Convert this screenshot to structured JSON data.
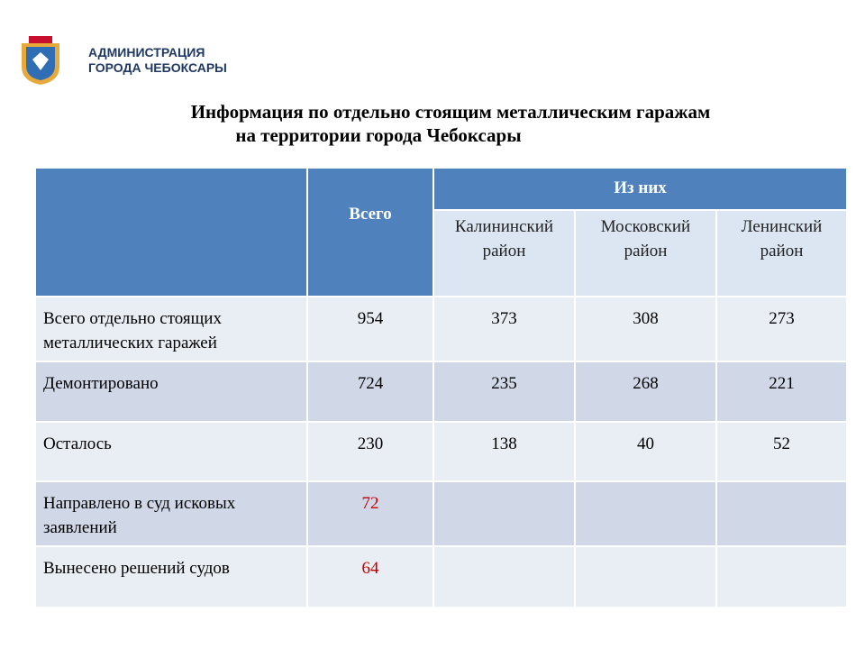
{
  "header": {
    "org_line1": "АДМИНИСТРАЦИЯ",
    "org_line2": "ГОРОДА ЧЕБОКСАРЫ"
  },
  "title": {
    "line1": "Информация по отдельно стоящим металлическим гаражам",
    "line2": "на территории города Чебоксары"
  },
  "table": {
    "head": {
      "total": "Всего",
      "group": "Из них",
      "districts": [
        "Калининский район",
        "Московский район",
        "Ленинский район"
      ]
    },
    "rows": [
      {
        "label": "Всего отдельно стоящих металлических гаражей",
        "values": [
          954,
          373,
          308,
          273
        ]
      },
      {
        "label": "Демонтировано",
        "values": [
          724,
          235,
          268,
          221
        ]
      },
      {
        "label": "Осталось",
        "values": [
          230,
          138,
          40,
          52
        ]
      },
      {
        "label": "Направлено в суд исковых заявлений",
        "values": [
          72
        ]
      },
      {
        "label": "Вынесено решений судов",
        "values": [
          64
        ]
      }
    ]
  }
}
